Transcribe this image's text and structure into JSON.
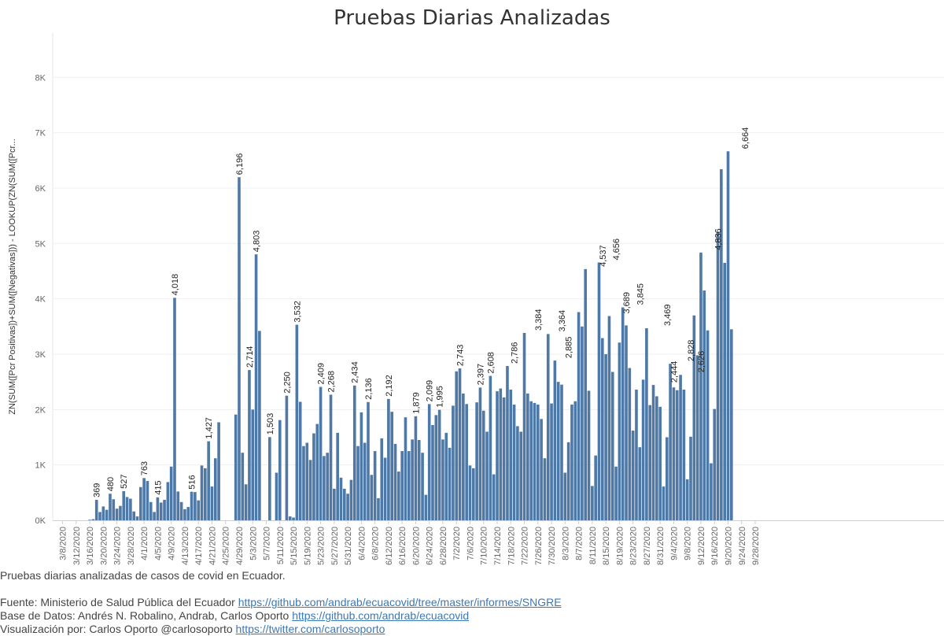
{
  "title": "Pruebas Diarias Analizadas",
  "chart_data": {
    "type": "bar",
    "title": "Pruebas Diarias Analizadas",
    "ylabel": "ZN(SUM([Pcr Positivas])+SUM([Negativas])) - LOOKUP(ZN(SUM([Pcr...",
    "xlabel": "",
    "ylim": [
      0,
      8800
    ],
    "y_ticks": [
      0,
      1000,
      2000,
      3000,
      4000,
      5000,
      6000,
      7000,
      8000
    ],
    "y_tick_labels": [
      "0K",
      "1K",
      "2K",
      "3K",
      "4K",
      "5K",
      "6K",
      "7K",
      "8K"
    ],
    "x_start_date": "3/8/2020",
    "x_tick_labels": [
      "3/8/2020",
      "3/12/2020",
      "3/16/2020",
      "3/20/2020",
      "3/24/2020",
      "3/28/2020",
      "4/1/2020",
      "4/5/2020",
      "4/9/2020",
      "4/13/2020",
      "4/17/2020",
      "4/21/2020",
      "4/25/2020",
      "4/29/2020",
      "5/3/2020",
      "5/7/2020",
      "5/11/2020",
      "5/15/2020",
      "5/19/2020",
      "5/23/2020",
      "5/27/2020",
      "5/31/2020",
      "6/4/2020",
      "6/8/2020",
      "6/12/2020",
      "6/16/2020",
      "6/20/2020",
      "6/24/2020",
      "6/28/2020",
      "7/2/2020",
      "7/6/2020",
      "7/10/2020",
      "7/14/2020",
      "7/18/2020",
      "7/22/2020",
      "7/26/2020",
      "7/30/2020",
      "8/3/2020",
      "8/7/2020",
      "8/11/2020",
      "8/15/2020",
      "8/19/2020",
      "8/23/2020",
      "8/27/2020",
      "8/31/2020",
      "9/4/2020",
      "9/8/2020",
      "9/12/2020",
      "9/16/2020",
      "9/20/2020",
      "9/24/2020",
      "9/28/2020"
    ],
    "values": [
      0,
      0,
      0,
      0,
      0,
      0,
      0,
      0,
      10,
      20,
      369,
      150,
      250,
      190,
      480,
      380,
      210,
      260,
      527,
      420,
      390,
      160,
      70,
      600,
      763,
      710,
      330,
      150,
      415,
      320,
      370,
      690,
      970,
      4018,
      520,
      330,
      200,
      240,
      516,
      510,
      360,
      990,
      940,
      1427,
      610,
      1120,
      1770,
      0,
      0,
      0,
      0,
      1910,
      6196,
      1220,
      650,
      2714,
      2000,
      4803,
      3420,
      0,
      0,
      1503,
      0,
      860,
      1810,
      0,
      2250,
      70,
      50,
      3532,
      2140,
      1340,
      1400,
      1090,
      1570,
      1740,
      2409,
      1160,
      1220,
      2268,
      570,
      1580,
      770,
      570,
      480,
      730,
      2434,
      1340,
      1950,
      1400,
      2136,
      820,
      1250,
      400,
      1480,
      1130,
      2192,
      1960,
      1380,
      880,
      1250,
      1860,
      1250,
      1460,
      1879,
      1450,
      1220,
      460,
      2099,
      1720,
      1900,
      1995,
      1460,
      1580,
      1310,
      2070,
      2690,
      2743,
      2290,
      2100,
      990,
      940,
      2130,
      2397,
      1980,
      1600,
      2608,
      830,
      2330,
      2380,
      2220,
      2786,
      2360,
      2090,
      1700,
      1600,
      3384,
      2290,
      2150,
      2120,
      2090,
      1830,
      1120,
      3364,
      2110,
      2885,
      2500,
      2450,
      860,
      1410,
      2090,
      2150,
      3760,
      3500,
      4537,
      2340,
      620,
      1170,
      4656,
      3290,
      3000,
      3689,
      2680,
      970,
      3210,
      3845,
      3520,
      2750,
      1620,
      2360,
      1320,
      2540,
      3469,
      2080,
      2444,
      2240,
      2050,
      610,
      1500,
      2828,
      2400,
      2350,
      2626,
      2360,
      740,
      1510,
      3700,
      2980,
      4836,
      4150,
      3430,
      1030,
      2010,
      5200,
      6340,
      4650,
      6664,
      3450,
      0,
      0,
      0,
      0,
      0,
      0,
      0,
      0,
      0,
      0,
      0,
      0
    ],
    "labeled_points": [
      {
        "date": "3/18/2020",
        "value": 369,
        "label": "369"
      },
      {
        "date": "3/22/2020",
        "value": 480,
        "label": "480"
      },
      {
        "date": "3/26/2020",
        "value": 527,
        "label": "527"
      },
      {
        "date": "4/1/2020",
        "value": 763,
        "label": "763"
      },
      {
        "date": "4/5/2020",
        "value": 415,
        "label": "415"
      },
      {
        "date": "4/10/2020",
        "value": 4018,
        "label": "4,018"
      },
      {
        "date": "4/15/2020",
        "value": 516,
        "label": "516"
      },
      {
        "date": "4/20/2020",
        "value": 1427,
        "label": "1,427"
      },
      {
        "date": "4/29/2020",
        "value": 6196,
        "label": "6,196"
      },
      {
        "date": "5/2/2020",
        "value": 2714,
        "label": "2,714"
      },
      {
        "date": "5/4/2020",
        "value": 4803,
        "label": "4,803"
      },
      {
        "date": "5/8/2020",
        "value": 1503,
        "label": "1,503"
      },
      {
        "date": "5/13/2020",
        "value": 2250,
        "label": "2,250"
      },
      {
        "date": "5/16/2020",
        "value": 3532,
        "label": "3,532"
      },
      {
        "date": "5/23/2020",
        "value": 2409,
        "label": "2,409"
      },
      {
        "date": "5/26/2020",
        "value": 2268,
        "label": "2,268"
      },
      {
        "date": "6/2/2020",
        "value": 2434,
        "label": "2,434"
      },
      {
        "date": "6/6/2020",
        "value": 2136,
        "label": "2,136"
      },
      {
        "date": "6/12/2020",
        "value": 2192,
        "label": "2,192"
      },
      {
        "date": "6/20/2020",
        "value": 1879,
        "label": "1,879"
      },
      {
        "date": "6/24/2020",
        "value": 2099,
        "label": "2,099"
      },
      {
        "date": "6/27/2020",
        "value": 1995,
        "label": "1,995"
      },
      {
        "date": "7/3/2020",
        "value": 2743,
        "label": "2,743"
      },
      {
        "date": "7/9/2020",
        "value": 2397,
        "label": "2,397"
      },
      {
        "date": "7/12/2020",
        "value": 2608,
        "label": "2,608"
      },
      {
        "date": "7/19/2020",
        "value": 2786,
        "label": "2,786"
      },
      {
        "date": "7/26/2020",
        "value": 3384,
        "label": "3,384"
      },
      {
        "date": "8/2/2020",
        "value": 3364,
        "label": "3,364"
      },
      {
        "date": "8/4/2020",
        "value": 2885,
        "label": "2,885"
      },
      {
        "date": "8/14/2020",
        "value": 4537,
        "label": "4,537"
      },
      {
        "date": "8/18/2020",
        "value": 4656,
        "label": "4,656"
      },
      {
        "date": "8/21/2020",
        "value": 3689,
        "label": "3,689"
      },
      {
        "date": "8/25/2020",
        "value": 3845,
        "label": "3,845"
      },
      {
        "date": "9/2/2020",
        "value": 3469,
        "label": "3,469"
      },
      {
        "date": "9/4/2020",
        "value": 2444,
        "label": "2,444"
      },
      {
        "date": "9/9/2020",
        "value": 2828,
        "label": "2,828"
      },
      {
        "date": "9/12/2020",
        "value": 2626,
        "label": "2,626"
      },
      {
        "date": "9/17/2020",
        "value": 4836,
        "label": "4,836"
      },
      {
        "date": "9/25/2020",
        "value": 6664,
        "label": "6,664"
      }
    ],
    "bar_color": "#4e79a7",
    "grid": true,
    "legend": "none"
  },
  "footer": {
    "description": "Pruebas diarias analizadas de casos de covid en Ecuador.",
    "source_prefix": "Fuente: Ministerio de Salud Pública del Ecuador ",
    "source_link": "https://github.com/andrab/ecuacovid/tree/master/informes/SNGRE",
    "data_prefix": "Base de Datos: Andrés N. Robalino, Andrab, Carlos Oporto ",
    "data_link": "https://github.com/andrab/ecuacovid",
    "viz_prefix": "Visualización por: Carlos Oporto @carlosoporto ",
    "viz_link": "https://twitter.com/carlosoporto"
  }
}
